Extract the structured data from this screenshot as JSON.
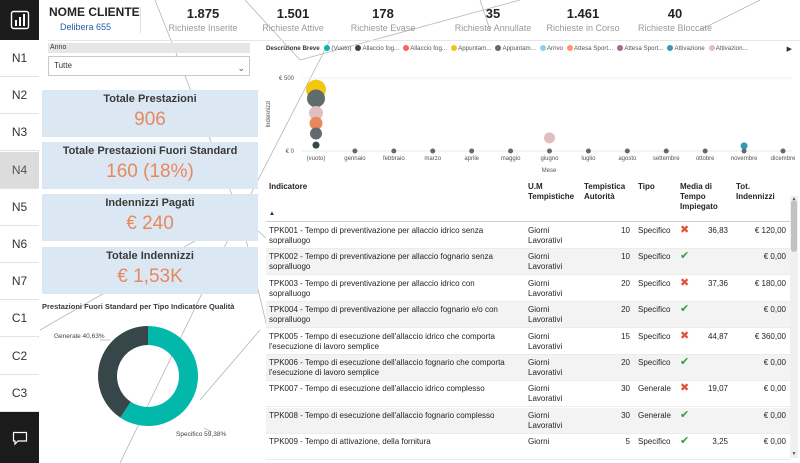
{
  "nav": {
    "items": [
      "N1",
      "N2",
      "N3",
      "N4",
      "N5",
      "N6",
      "N7",
      "C1",
      "C2",
      "C3"
    ],
    "active_index": 3,
    "logo_icon": "powerbi-chart-icon",
    "chat_icon": "chat-icon"
  },
  "header": {
    "client_title": "NOME CLIENTE",
    "client_subtitle": "Delibera 655",
    "kpis": [
      {
        "value": "1.875",
        "label": "Richieste Inserite"
      },
      {
        "value": "1.501",
        "label": "Richieste Attive"
      },
      {
        "value": "178",
        "label": "Richieste Evase"
      },
      {
        "value": "35",
        "label": "Richieste Annullate"
      },
      {
        "value": "1.461",
        "label": "Richieste in Corso"
      },
      {
        "value": "40",
        "label": "Richieste Bloccate"
      }
    ]
  },
  "slicer": {
    "label": "Anno",
    "value": "Tutte"
  },
  "cards": [
    {
      "title": "Totale Prestazioni",
      "value": "906"
    },
    {
      "title": "Totale Prestazioni Fuori Standard",
      "value": "160 (18%)"
    },
    {
      "title": "Indennizzi Pagati",
      "value": "€ 240"
    },
    {
      "title": "Totale Indennizzi",
      "value": "€ 1,53K"
    }
  ],
  "accent_color": "#e8895d",
  "card_bg": "#dbe7f3",
  "donut": {
    "title": "Prestazioni Fuori Standard per Tipo Indicatore Qualità",
    "label_generale": "Generale 40,63%",
    "label_specifico": "Specifico 59,38%",
    "chart_data": {
      "type": "pie",
      "categories": [
        "Generale",
        "Specifico"
      ],
      "values": [
        40.63,
        59.38
      ],
      "colors": [
        "#374649",
        "#01b8aa"
      ]
    }
  },
  "scatter": {
    "legend_title": "Descrizione Breve",
    "legend": [
      {
        "name": "(Vuoto)",
        "color": "#01b8aa"
      },
      {
        "name": "Allaccio fog...",
        "color": "#374649"
      },
      {
        "name": "Allaccio fog...",
        "color": "#fd625e"
      },
      {
        "name": "Appuntam...",
        "color": "#f2c80f"
      },
      {
        "name": "Appuntam...",
        "color": "#5f6b6d"
      },
      {
        "name": "Arrivo",
        "color": "#8ad4eb"
      },
      {
        "name": "Attesa Sport...",
        "color": "#fe9666"
      },
      {
        "name": "Attesa Sport...",
        "color": "#a66999"
      },
      {
        "name": "Attivazione",
        "color": "#3599b8"
      },
      {
        "name": "Attivazion...",
        "color": "#dfbfbf"
      }
    ],
    "ylabel": "Indennizzi",
    "xlabel": "Mese",
    "y_ticks": [
      "€ 500",
      "€ 0"
    ],
    "chart_data": {
      "type": "scatter",
      "categories": [
        "(vuoto)",
        "gennaio",
        "febbraio",
        "marzo",
        "aprile",
        "maggio",
        "giugno",
        "luglio",
        "agosto",
        "settembre",
        "ottobre",
        "novembre",
        "dicembre"
      ],
      "ylim": [
        0,
        500
      ],
      "points": [
        {
          "x": "(vuoto)",
          "y": 420,
          "size": 10,
          "color": "#f2c80f"
        },
        {
          "x": "(vuoto)",
          "y": 360,
          "size": 9,
          "color": "#5f6b6d"
        },
        {
          "x": "(vuoto)",
          "y": 260,
          "size": 7,
          "color": "#dfbfbf"
        },
        {
          "x": "(vuoto)",
          "y": 190,
          "size": 6.5,
          "color": "#e8895d"
        },
        {
          "x": "(vuoto)",
          "y": 120,
          "size": 6,
          "color": "#5f6b6d"
        },
        {
          "x": "(vuoto)",
          "y": 40,
          "size": 3.5,
          "color": "#374649"
        },
        {
          "x": "gennaio",
          "y": 0,
          "size": 2.5,
          "color": "#5f6b6d"
        },
        {
          "x": "febbraio",
          "y": 0,
          "size": 2.5,
          "color": "#5f6b6d"
        },
        {
          "x": "marzo",
          "y": 0,
          "size": 2.5,
          "color": "#5f6b6d"
        },
        {
          "x": "aprile",
          "y": 0,
          "size": 2.5,
          "color": "#5f6b6d"
        },
        {
          "x": "maggio",
          "y": 0,
          "size": 2.5,
          "color": "#5f6b6d"
        },
        {
          "x": "giugno",
          "y": 90,
          "size": 5.5,
          "color": "#dfbfbf"
        },
        {
          "x": "giugno",
          "y": 0,
          "size": 2.5,
          "color": "#5f6b6d"
        },
        {
          "x": "luglio",
          "y": 0,
          "size": 2.5,
          "color": "#5f6b6d"
        },
        {
          "x": "agosto",
          "y": 0,
          "size": 2.5,
          "color": "#5f6b6d"
        },
        {
          "x": "settembre",
          "y": 0,
          "size": 2.5,
          "color": "#5f6b6d"
        },
        {
          "x": "ottobre",
          "y": 0,
          "size": 2.5,
          "color": "#5f6b6d"
        },
        {
          "x": "novembre",
          "y": 35,
          "size": 3.5,
          "color": "#3599b8"
        },
        {
          "x": "novembre",
          "y": 0,
          "size": 2.5,
          "color": "#5f6b6d"
        },
        {
          "x": "dicembre",
          "y": 0,
          "size": 2.5,
          "color": "#5f6b6d"
        }
      ]
    }
  },
  "table": {
    "headers": {
      "indicatore": "Indicatore",
      "um": [
        "U.M",
        "Tempistiche"
      ],
      "tempistica": [
        "Tempistica",
        "Autorità"
      ],
      "tipo": "Tipo",
      "media": [
        "Media di",
        "Tempo",
        "Impiegato"
      ],
      "tot": [
        "Tot.",
        "Indennizzi"
      ]
    },
    "rows": [
      {
        "ind": [
          "TPK001 - Tempo di preventivazione per allaccio idrico senza",
          "sopralluogo"
        ],
        "um": [
          "Giorni",
          "Lavorativi"
        ],
        "ta": "10",
        "tipo": "Specifico",
        "status": "x",
        "media": "36,83",
        "tot": "€ 120,00"
      },
      {
        "ind": [
          "TPK002 - Tempo di preventivazione per allaccio fognario senza",
          "sopralluogo"
        ],
        "um": [
          "Giorni",
          "Lavorativi"
        ],
        "ta": "10",
        "tipo": "Specifico",
        "status": "ok",
        "media": "",
        "tot": "€ 0,00"
      },
      {
        "ind": [
          "TPK003 - Tempo di preventivazione per allaccio idrico con",
          "sopralluogo"
        ],
        "um": [
          "Giorni",
          "Lavorativi"
        ],
        "ta": "20",
        "tipo": "Specifico",
        "status": "x",
        "media": "37,36",
        "tot": "€ 180,00"
      },
      {
        "ind": [
          "TPK004 - Tempo di preventivazione per allaccio fognario e/o con",
          "sopralluogo"
        ],
        "um": [
          "Giorni",
          "Lavorativi"
        ],
        "ta": "20",
        "tipo": "Specifico",
        "status": "ok",
        "media": "",
        "tot": "€ 0,00"
      },
      {
        "ind": [
          "TPK005 - Tempo di esecuzione dell'allaccio idrico che comporta",
          "l'esecuzione di lavoro semplice"
        ],
        "um": [
          "Giorni",
          "Lavorativi"
        ],
        "ta": "15",
        "tipo": "Specifico",
        "status": "x",
        "media": "44,87",
        "tot": "€ 360,00"
      },
      {
        "ind": [
          "TPK006 - Tempo di esecuzione dell'allaccio fognario che comporta",
          "l'esecuzione di lavoro semplice"
        ],
        "um": [
          "Giorni",
          "Lavorativi"
        ],
        "ta": "20",
        "tipo": "Specifico",
        "status": "ok",
        "media": "",
        "tot": "€ 0,00"
      },
      {
        "ind": [
          "TPK007 - Tempo di esecuzione dell'allaccio idrico complesso",
          ""
        ],
        "um": [
          "Giorni",
          "Lavorativi"
        ],
        "ta": "30",
        "tipo": "Generale",
        "status": "x",
        "media": "19,07",
        "tot": "€ 0,00"
      },
      {
        "ind": [
          "TPK008 - Tempo di esecuzione dell'allaccio fognario complesso",
          ""
        ],
        "um": [
          "Giorni",
          "Lavorativi"
        ],
        "ta": "30",
        "tipo": "Generale",
        "status": "ok",
        "media": "",
        "tot": "€ 0,00"
      },
      {
        "ind": [
          "TPK009 - Tempo di attivazione, della fornitura",
          ""
        ],
        "um": [
          "Giorni",
          ""
        ],
        "ta": "5",
        "tipo": "Specifico",
        "status": "ok",
        "media": "3,25",
        "tot": "€ 0,00"
      }
    ]
  }
}
